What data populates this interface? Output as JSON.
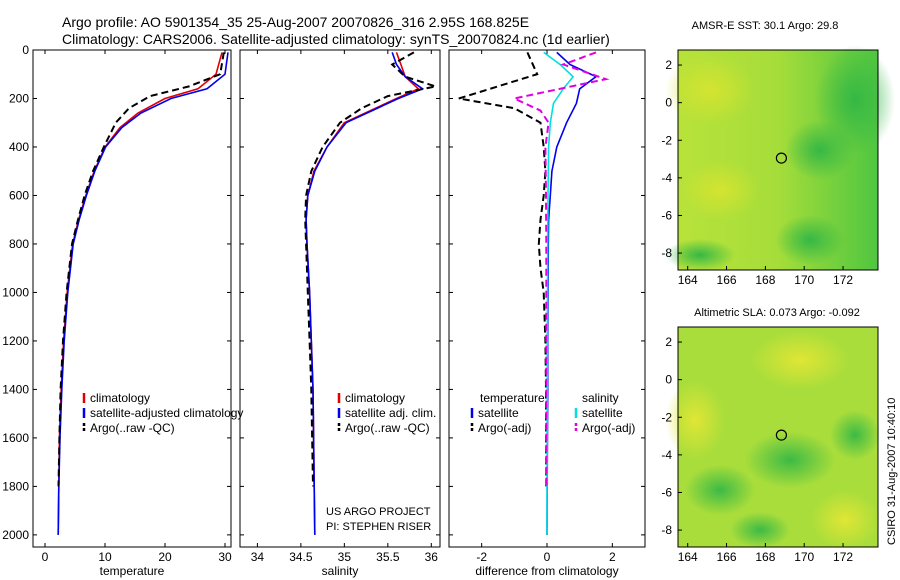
{
  "header": {
    "line1": "Argo profile: AO 5901354_35 25-Aug-2007 20070826_316 2.95S 168.825E",
    "line2": "Climatology: CARS2006. Satellite-adjusted climatology: synTS_20070824.nc (1d earlier)"
  },
  "footer": {
    "project": "US ARGO PROJECT",
    "pi": "PI: STEPHEN RISER",
    "stamp": "CSIRO 31-Aug-2007 10:40:10"
  },
  "colors": {
    "climatology": "#e00000",
    "satellite": "#0000ee",
    "argo": "#000000",
    "sal_satellite": "#00e0e0",
    "sal_argo": "#e000e0"
  },
  "chart_data": [
    {
      "type": "line",
      "id": "temperature",
      "xlabel": "temperature",
      "ylabel": "",
      "xlim": [
        -2,
        31
      ],
      "ylim": [
        2050,
        0
      ],
      "x_ticks": [
        0,
        10,
        20,
        30
      ],
      "y_ticks": [
        0,
        200,
        400,
        600,
        800,
        1000,
        1200,
        1400,
        1600,
        1800,
        2000
      ],
      "legend": [
        "climatology",
        "satellite-adjusted climatology",
        "Argo(..raw -QC)"
      ],
      "series": [
        {
          "name": "climatology",
          "style": "solid",
          "color": "#e00000",
          "x": [
            29.5,
            28.5,
            25.5,
            20.0,
            15.5,
            12.5,
            10.0,
            8.2,
            6.8,
            5.6,
            4.6,
            3.7,
            3.1,
            2.7,
            2.4,
            2.3,
            2.2
          ],
          "y": [
            10,
            100,
            160,
            200,
            260,
            320,
            400,
            500,
            600,
            700,
            800,
            1000,
            1200,
            1400,
            1600,
            1800,
            2000
          ]
        },
        {
          "name": "satellite-adjusted climatology",
          "style": "solid",
          "color": "#0000ee",
          "x": [
            30.5,
            30.0,
            27.0,
            21.0,
            16.0,
            12.8,
            10.1,
            8.3,
            6.9,
            5.7,
            4.7,
            3.8,
            3.2,
            2.8,
            2.5,
            2.3,
            2.2
          ],
          "y": [
            10,
            100,
            160,
            200,
            260,
            320,
            400,
            500,
            600,
            700,
            800,
            1000,
            1200,
            1400,
            1600,
            1800,
            2000
          ]
        },
        {
          "name": "Argo(..raw -QC)",
          "style": "dashed",
          "color": "#000000",
          "x": [
            29.8,
            29.2,
            24.0,
            17.5,
            14.0,
            11.8,
            9.8,
            8.0,
            6.6,
            5.5,
            4.5,
            3.6,
            3.0,
            2.6,
            2.4,
            2.25
          ],
          "y": [
            10,
            100,
            150,
            190,
            240,
            300,
            400,
            500,
            600,
            700,
            800,
            1000,
            1200,
            1400,
            1600,
            1800
          ]
        }
      ]
    },
    {
      "type": "line",
      "id": "salinity",
      "xlabel": "salinity",
      "ylabel": "",
      "xlim": [
        33.8,
        36.1
      ],
      "ylim": [
        2050,
        0
      ],
      "x_ticks": [
        34,
        34.5,
        35,
        35.5,
        36
      ],
      "y_ticks": [
        0,
        200,
        400,
        600,
        800,
        1000,
        1200,
        1400,
        1600,
        1800,
        2000
      ],
      "legend": [
        "climatology",
        "satellite adj. clim.",
        "Argo(..raw -QC)"
      ],
      "series": [
        {
          "name": "climatology",
          "style": "solid",
          "color": "#e00000",
          "x": [
            35.6,
            35.65,
            35.7,
            35.85,
            35.6,
            35.3,
            35.0,
            34.8,
            34.65,
            34.58,
            34.56,
            34.57,
            34.6,
            34.62,
            34.64,
            34.65,
            34.66
          ],
          "y": [
            10,
            60,
            110,
            160,
            200,
            250,
            300,
            400,
            500,
            600,
            700,
            800,
            1000,
            1200,
            1400,
            1700,
            2000
          ]
        },
        {
          "name": "satellite adj. clim.",
          "style": "solid",
          "color": "#0000ee",
          "x": [
            35.55,
            35.6,
            35.7,
            35.9,
            35.62,
            35.32,
            35.02,
            34.8,
            34.66,
            34.58,
            34.56,
            34.57,
            34.6,
            34.62,
            34.64,
            34.65,
            34.66
          ],
          "y": [
            10,
            60,
            110,
            160,
            200,
            250,
            300,
            400,
            500,
            600,
            700,
            800,
            1000,
            1200,
            1400,
            1700,
            2000
          ]
        },
        {
          "name": "Argo(..raw -QC)",
          "style": "dashed",
          "color": "#000000",
          "x": [
            35.8,
            35.55,
            35.7,
            36.05,
            35.5,
            35.2,
            34.95,
            34.75,
            34.62,
            34.56,
            34.55,
            34.56,
            34.58,
            34.6,
            34.62,
            34.64
          ],
          "y": [
            10,
            60,
            110,
            150,
            190,
            240,
            300,
            400,
            500,
            600,
            700,
            800,
            1000,
            1200,
            1400,
            1800
          ]
        }
      ]
    },
    {
      "type": "line",
      "id": "difference",
      "xlabel": "difference from climatology",
      "ylabel": "",
      "xlim": [
        -3,
        3
      ],
      "ylim": [
        2050,
        0
      ],
      "x_ticks": [
        -2,
        0,
        2
      ],
      "y_ticks": [
        0,
        200,
        400,
        600,
        800,
        1000,
        1200,
        1400,
        1600,
        1800,
        2000
      ],
      "legend_headers": [
        "temperature",
        "salinity"
      ],
      "legend": [
        "satellite",
        "Argo(-adj)",
        "satellite",
        "Argo(-adj)"
      ],
      "series": [
        {
          "name": "satellite",
          "group": "temperature",
          "style": "solid",
          "color": "#0000ee",
          "x": [
            0.3,
            0.7,
            1.5,
            1.0,
            0.9,
            0.6,
            0.3,
            0.15,
            0.1,
            0.05,
            0.04,
            0.03,
            0.02,
            0.02,
            0.01,
            0.0
          ],
          "y": [
            10,
            60,
            110,
            160,
            220,
            300,
            400,
            500,
            600,
            700,
            800,
            1000,
            1200,
            1400,
            1700,
            2000
          ]
        },
        {
          "name": "Argo(-adj)",
          "group": "temperature",
          "style": "dashed",
          "color": "#000000",
          "x": [
            -0.6,
            -0.3,
            -2.7,
            -1.0,
            -0.2,
            -0.1,
            -0.05,
            -0.1,
            -0.2,
            -0.25,
            -0.2,
            -0.1,
            -0.05,
            -0.03,
            -0.02
          ],
          "y": [
            10,
            100,
            200,
            240,
            300,
            400,
            500,
            600,
            700,
            800,
            900,
            1000,
            1200,
            1400,
            1800
          ]
        },
        {
          "name": "satellite",
          "group": "salinity",
          "style": "solid",
          "color": "#00e0e0",
          "x": [
            -0.1,
            0.4,
            0.8,
            0.5,
            0.2,
            0.1,
            0.05,
            0.03,
            0.02,
            0.01,
            0.0
          ],
          "y": [
            10,
            60,
            110,
            160,
            220,
            300,
            400,
            600,
            800,
            1200,
            2000
          ]
        },
        {
          "name": "Argo(-adj)",
          "group": "salinity",
          "style": "dashed",
          "color": "#e000e0",
          "x": [
            1.5,
            0.5,
            1.8,
            -1.0,
            -0.2,
            0.05,
            -0.05,
            -0.03,
            -0.02,
            -0.02,
            -0.02
          ],
          "y": [
            10,
            60,
            120,
            200,
            250,
            300,
            400,
            600,
            800,
            1200,
            1800
          ]
        }
      ]
    },
    {
      "type": "heatmap",
      "id": "sst_map",
      "title": "AMSR-E SST: 30.1 Argo: 29.8",
      "xlim": [
        163.5,
        173.8
      ],
      "ylim": [
        -8.9,
        2.8
      ],
      "x_ticks": [
        164,
        166,
        168,
        170,
        172
      ],
      "y_ticks": [
        2,
        0,
        -2,
        -4,
        -6,
        -8
      ],
      "marker": {
        "x": 168.825,
        "y": -2.95
      }
    },
    {
      "type": "heatmap",
      "id": "sla_map",
      "title": "Altimetric SLA: 0.073 Argo: -0.092",
      "xlim": [
        163.5,
        173.8
      ],
      "ylim": [
        -8.9,
        2.8
      ],
      "x_ticks": [
        164,
        166,
        168,
        170,
        172
      ],
      "y_ticks": [
        2,
        0,
        -2,
        -4,
        -6,
        -8
      ],
      "marker": {
        "x": 168.825,
        "y": -2.95
      }
    }
  ]
}
